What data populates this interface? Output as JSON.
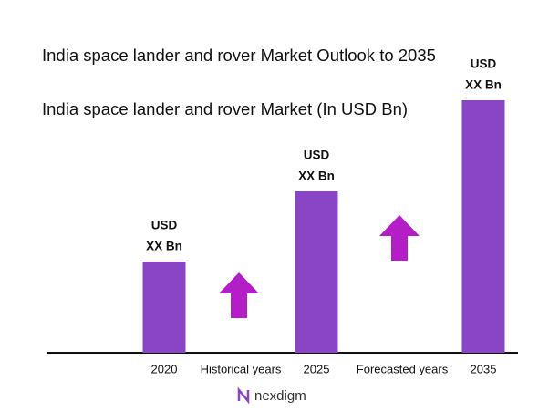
{
  "chart_data": {
    "type": "bar",
    "title": "India space lander and rover Market Outlook to 2035",
    "subtitle": "India space lander and rover Market (In USD Bn)",
    "categories": [
      "2020",
      "2025",
      "2035"
    ],
    "values": [
      100,
      177,
      277
    ],
    "value_labels": [
      [
        "USD",
        "XX Bn"
      ],
      [
        "USD",
        "XX Bn"
      ],
      [
        "USD",
        "XX Bn"
      ]
    ],
    "color": "#8a44c6",
    "ylim": [
      0,
      300
    ],
    "annotations": [
      "Historical years",
      "Forecasted years"
    ],
    "brand": "nexdigm"
  }
}
